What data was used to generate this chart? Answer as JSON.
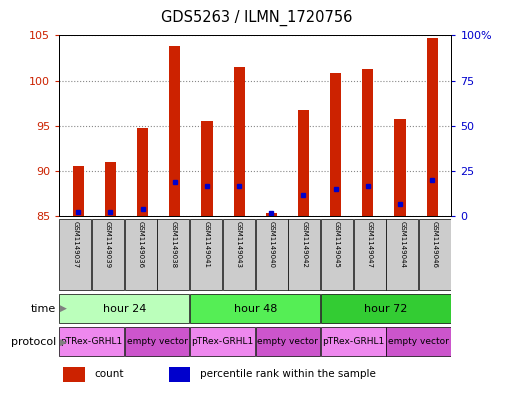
{
  "title": "GDS5263 / ILMN_1720756",
  "samples": [
    "GSM1149037",
    "GSM1149039",
    "GSM1149036",
    "GSM1149038",
    "GSM1149041",
    "GSM1149043",
    "GSM1149040",
    "GSM1149042",
    "GSM1149045",
    "GSM1149047",
    "GSM1149044",
    "GSM1149046"
  ],
  "red_values": [
    90.5,
    91.0,
    94.8,
    103.8,
    95.5,
    101.5,
    85.3,
    96.7,
    100.8,
    101.3,
    95.7,
    104.7
  ],
  "blue_values": [
    85.5,
    85.5,
    85.8,
    88.8,
    88.3,
    88.3,
    85.3,
    87.3,
    88.0,
    88.3,
    86.3,
    89.0
  ],
  "ymin": 85,
  "ymax": 105,
  "y_ticks": [
    85,
    90,
    95,
    100,
    105
  ],
  "y2_labels": [
    "0",
    "25",
    "50",
    "75",
    "100%"
  ],
  "time_groups": [
    {
      "label": "hour 24",
      "start": 0,
      "end": 4,
      "color": "#bbffbb"
    },
    {
      "label": "hour 48",
      "start": 4,
      "end": 8,
      "color": "#55ee55"
    },
    {
      "label": "hour 72",
      "start": 8,
      "end": 12,
      "color": "#33cc33"
    }
  ],
  "protocol_groups": [
    {
      "label": "pTRex-GRHL1",
      "start": 0,
      "end": 2,
      "color": "#ee88ee"
    },
    {
      "label": "empty vector",
      "start": 2,
      "end": 4,
      "color": "#cc55cc"
    },
    {
      "label": "pTRex-GRHL1",
      "start": 4,
      "end": 6,
      "color": "#ee88ee"
    },
    {
      "label": "empty vector",
      "start": 6,
      "end": 8,
      "color": "#cc55cc"
    },
    {
      "label": "pTRex-GRHL1",
      "start": 8,
      "end": 10,
      "color": "#ee88ee"
    },
    {
      "label": "empty vector",
      "start": 10,
      "end": 12,
      "color": "#cc55cc"
    }
  ],
  "bar_color": "#cc2200",
  "dot_color": "#0000cc",
  "bar_width": 0.35,
  "grid_color": "#888888",
  "legend_items": [
    {
      "label": "count",
      "color": "#cc2200"
    },
    {
      "label": "percentile rank within the sample",
      "color": "#0000cc"
    }
  ],
  "left_label_color": "#cc2200",
  "right_label_color": "#0000cc",
  "sample_box_color": "#cccccc",
  "fig_bg": "#ffffff"
}
